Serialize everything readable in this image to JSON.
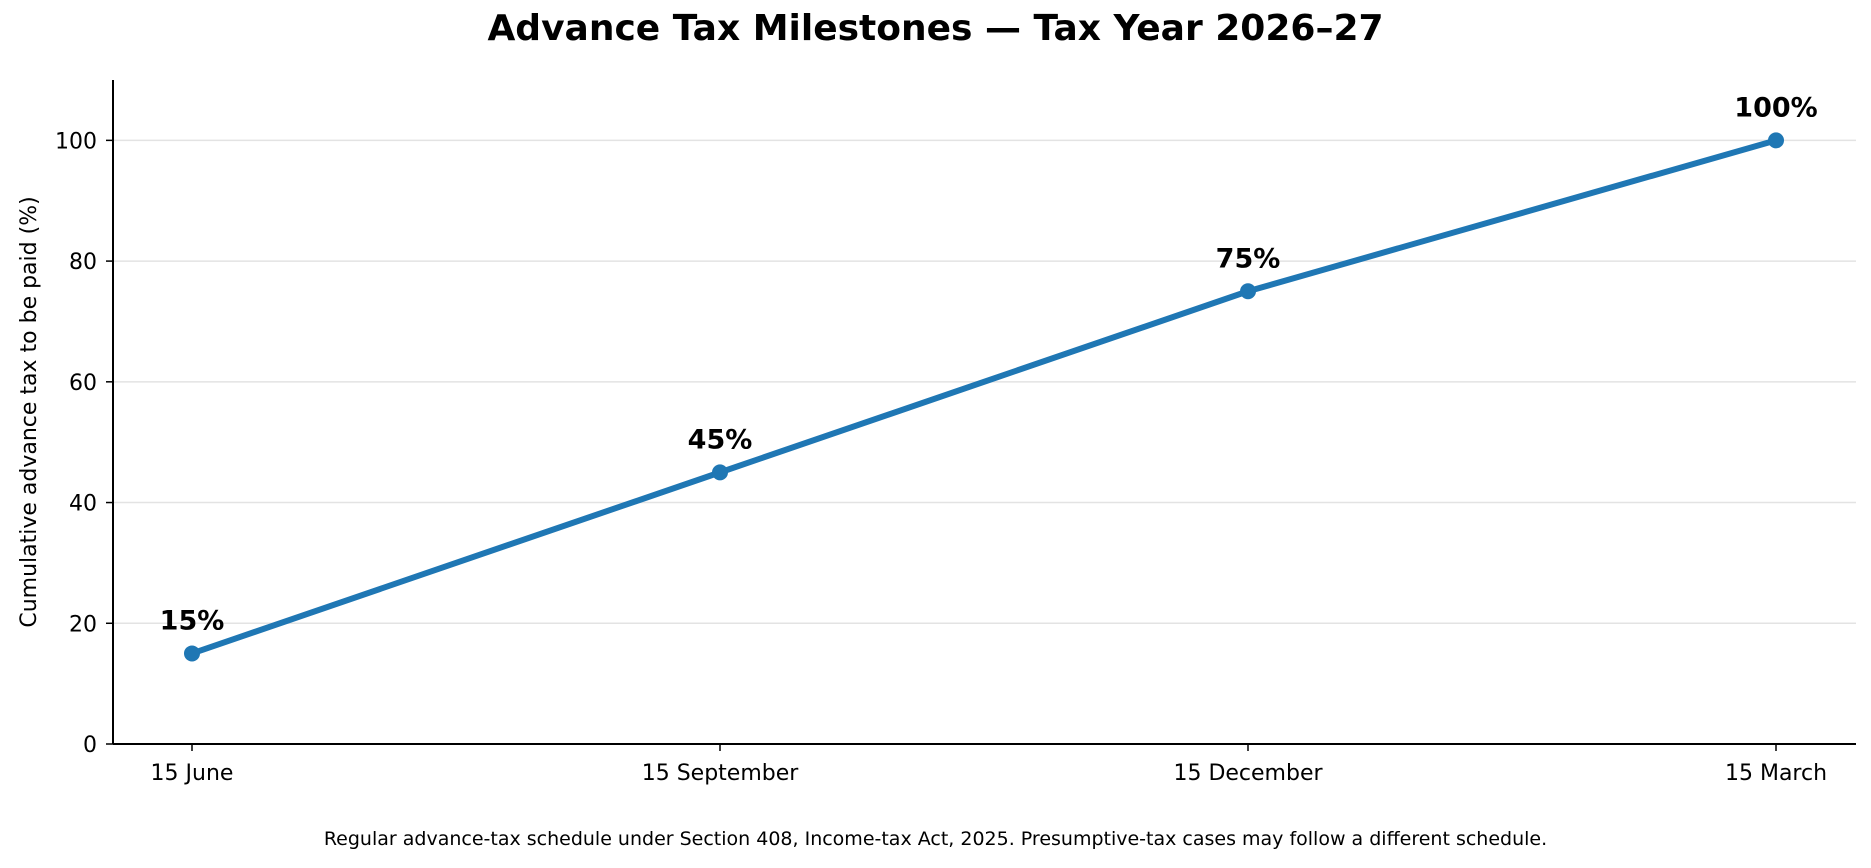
{
  "chart_data": {
    "type": "line",
    "title": "Advance Tax Milestones — Tax Year 2026–27",
    "xlabel": "",
    "ylabel": "Cumulative advance tax to be paid (%)",
    "categories": [
      "15 June",
      "15 September",
      "15 December",
      "15 March"
    ],
    "series": [
      {
        "values": [
          15,
          45,
          75,
          100
        ]
      }
    ],
    "data_labels": [
      "15%",
      "45%",
      "75%",
      "100%"
    ],
    "ylim": [
      0,
      110
    ],
    "yticks": [
      0,
      20,
      40,
      60,
      80,
      100
    ],
    "grid": "horizontal",
    "line_color": "#1f77b4",
    "footnote": "Regular advance-tax schedule under Section 408, Income-tax Act, 2025. Presumptive-tax cases may follow a different schedule."
  }
}
